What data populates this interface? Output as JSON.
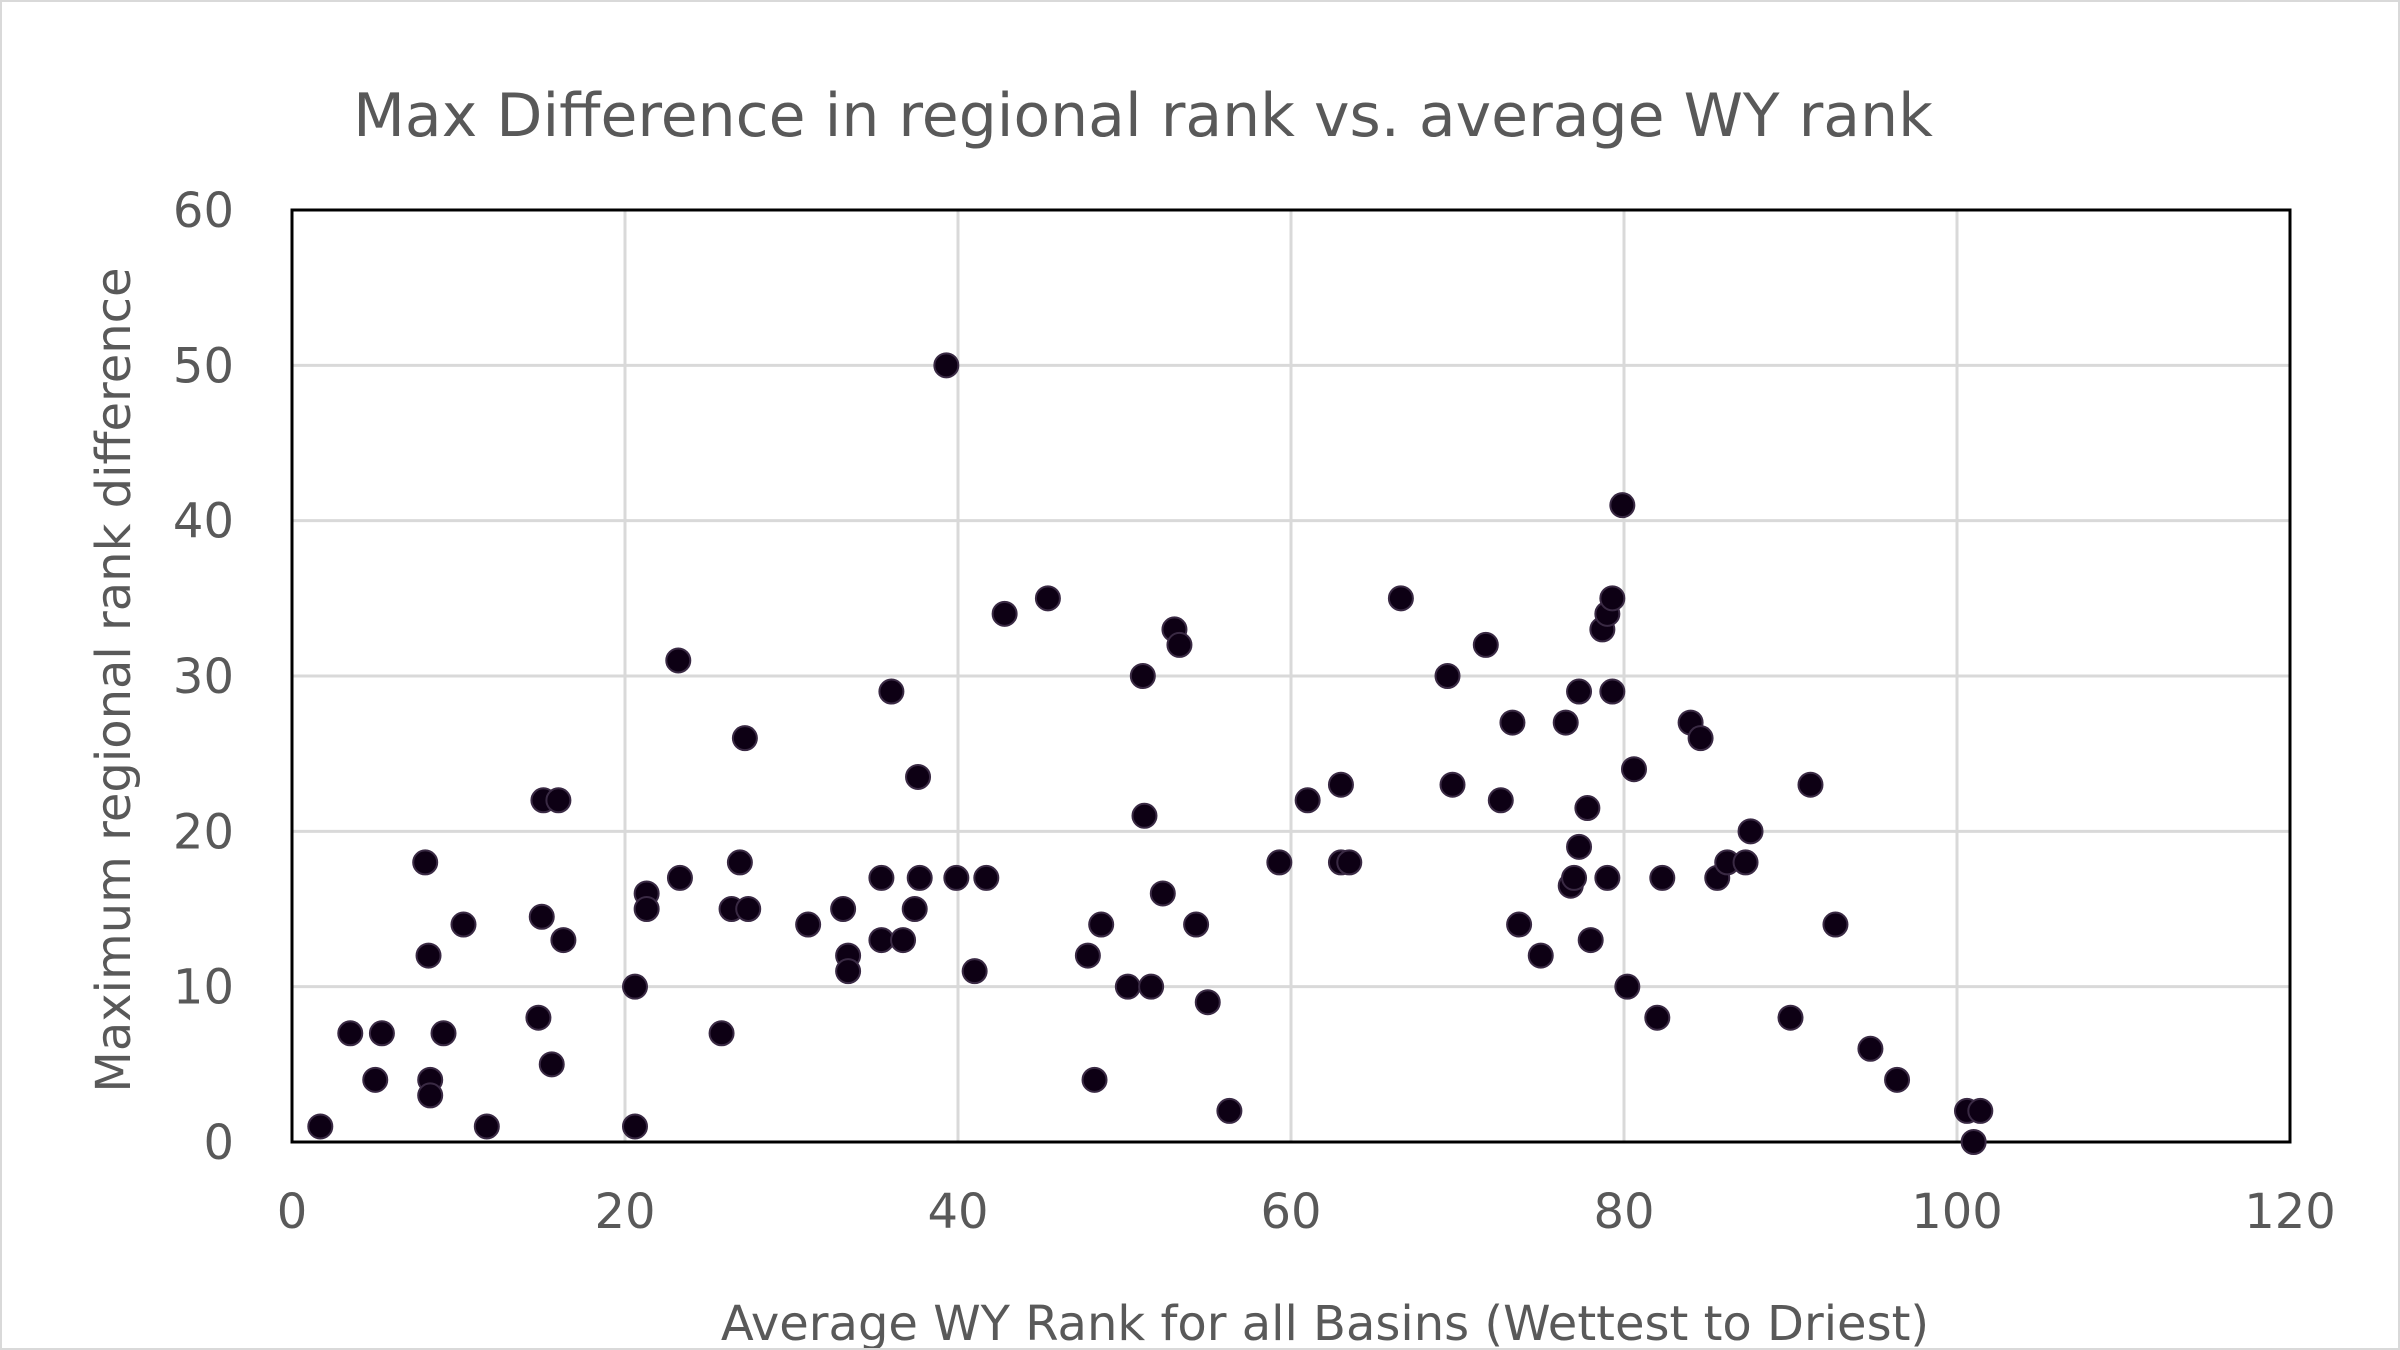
{
  "chart_data": {
    "type": "scatter",
    "title": "Max Difference in regional rank vs. average WY rank",
    "xlabel": "Average WY Rank for all Basins (Wettest to Driest)",
    "ylabel": "Maximum regional rank difference",
    "xlim": [
      0,
      120
    ],
    "ylim": [
      0,
      60
    ],
    "xticks": [
      0,
      20,
      40,
      60,
      80,
      100,
      120
    ],
    "yticks": [
      0,
      10,
      20,
      30,
      40,
      50,
      60
    ],
    "grid": true,
    "legend": "none",
    "marker_color": "#0d0014",
    "grid_color": "#d9d9d9",
    "points": [
      [
        1.7,
        1
      ],
      [
        3.5,
        7
      ],
      [
        5.0,
        4
      ],
      [
        5.4,
        7
      ],
      [
        8.0,
        18
      ],
      [
        8.2,
        12
      ],
      [
        8.3,
        4
      ],
      [
        8.3,
        3
      ],
      [
        9.1,
        7
      ],
      [
        10.3,
        14
      ],
      [
        11.7,
        1
      ],
      [
        14.8,
        8
      ],
      [
        15.0,
        14.5
      ],
      [
        15.1,
        22
      ],
      [
        15.6,
        5
      ],
      [
        16.0,
        22
      ],
      [
        16.3,
        13
      ],
      [
        20.6,
        1
      ],
      [
        20.6,
        10
      ],
      [
        21.3,
        16
      ],
      [
        21.3,
        15
      ],
      [
        23.2,
        31
      ],
      [
        23.3,
        17
      ],
      [
        25.8,
        7
      ],
      [
        26.4,
        15
      ],
      [
        26.9,
        18
      ],
      [
        27.2,
        26
      ],
      [
        27.4,
        15
      ],
      [
        31.0,
        14
      ],
      [
        33.1,
        15
      ],
      [
        33.4,
        12
      ],
      [
        33.4,
        11
      ],
      [
        35.4,
        17
      ],
      [
        35.4,
        13
      ],
      [
        36.0,
        29
      ],
      [
        36.7,
        13
      ],
      [
        37.4,
        15
      ],
      [
        37.6,
        23.5
      ],
      [
        37.7,
        17
      ],
      [
        39.3,
        50
      ],
      [
        39.9,
        17
      ],
      [
        41.0,
        11
      ],
      [
        41.7,
        17
      ],
      [
        42.8,
        34
      ],
      [
        45.4,
        35
      ],
      [
        47.8,
        12
      ],
      [
        48.2,
        4
      ],
      [
        48.6,
        14
      ],
      [
        50.2,
        10
      ],
      [
        51.1,
        30
      ],
      [
        51.2,
        21
      ],
      [
        51.6,
        10
      ],
      [
        52.3,
        16
      ],
      [
        53.0,
        33
      ],
      [
        53.3,
        32
      ],
      [
        54.3,
        14
      ],
      [
        55.0,
        9
      ],
      [
        56.3,
        2
      ],
      [
        59.3,
        18
      ],
      [
        61.0,
        22
      ],
      [
        63.0,
        23
      ],
      [
        63.0,
        18
      ],
      [
        63.5,
        18
      ],
      [
        66.6,
        35
      ],
      [
        69.4,
        30
      ],
      [
        69.7,
        23
      ],
      [
        71.7,
        32
      ],
      [
        72.6,
        22
      ],
      [
        73.3,
        27
      ],
      [
        73.7,
        14
      ],
      [
        75.0,
        12
      ],
      [
        76.5,
        27
      ],
      [
        76.8,
        16.5
      ],
      [
        77.0,
        17
      ],
      [
        77.3,
        19
      ],
      [
        77.3,
        29
      ],
      [
        77.8,
        21.5
      ],
      [
        78.0,
        13
      ],
      [
        78.7,
        33
      ],
      [
        79.0,
        34
      ],
      [
        79.0,
        17
      ],
      [
        79.3,
        35
      ],
      [
        79.3,
        29
      ],
      [
        79.9,
        41
      ],
      [
        80.2,
        10
      ],
      [
        80.6,
        24
      ],
      [
        82.0,
        8
      ],
      [
        82.3,
        17
      ],
      [
        84.0,
        27
      ],
      [
        84.6,
        26
      ],
      [
        85.6,
        17
      ],
      [
        86.2,
        18
      ],
      [
        87.3,
        18
      ],
      [
        87.6,
        20
      ],
      [
        90.0,
        8
      ],
      [
        91.2,
        23
      ],
      [
        92.7,
        14
      ],
      [
        94.8,
        6
      ],
      [
        96.4,
        4
      ],
      [
        100.6,
        2
      ],
      [
        101.0,
        0
      ],
      [
        101.4,
        2
      ]
    ]
  }
}
